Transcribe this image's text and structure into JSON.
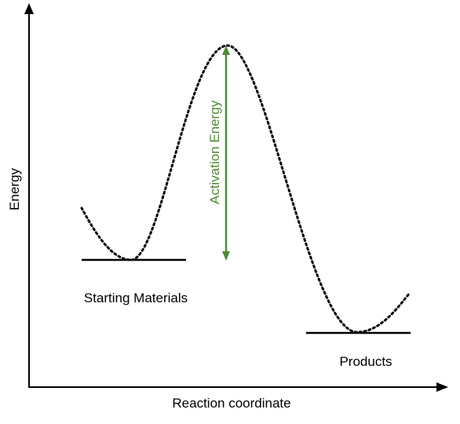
{
  "axes": {
    "y_label": "Energy",
    "x_label": "Reaction coordinate"
  },
  "labels": {
    "starting_materials": "Starting Materials",
    "products": "Products",
    "activation_energy": "Activation Energy"
  },
  "colors": {
    "axis": "#000000",
    "curve": "#000000",
    "activation_arrow": "#4e8a35"
  }
}
